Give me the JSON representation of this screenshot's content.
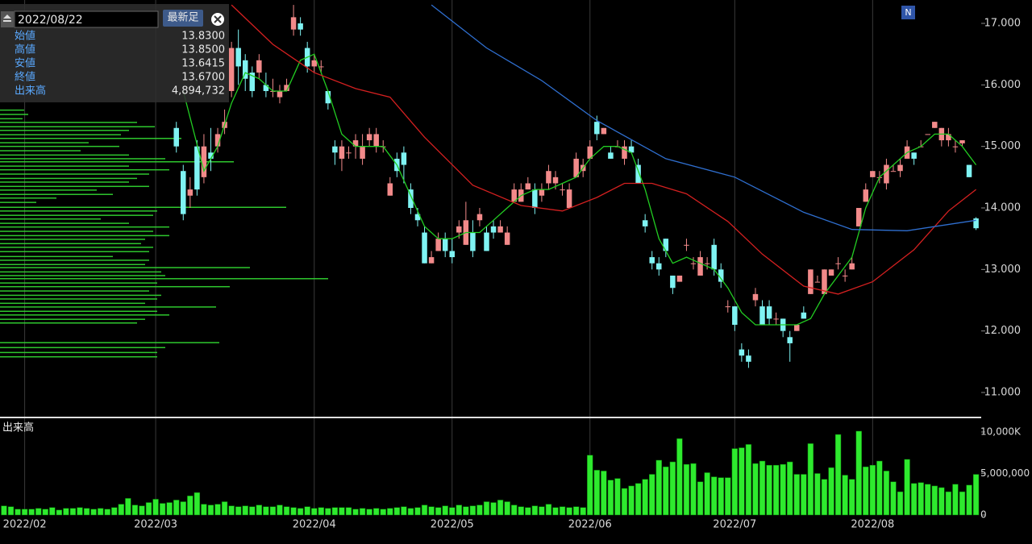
{
  "info_panel": {
    "date": "2022/08/22",
    "button": "最新足",
    "rows": [
      {
        "label": "始値",
        "value": "13.8300"
      },
      {
        "label": "高値",
        "value": "13.8500"
      },
      {
        "label": "安値",
        "value": "13.6415"
      },
      {
        "label": "終値",
        "value": "13.6700"
      },
      {
        "label": "出来高",
        "value": "4,894,732"
      }
    ]
  },
  "badge": "N",
  "chart_data": {
    "type": "candlestick",
    "xlim": [
      -0.58,
      141.75
    ],
    "xticks": [
      {
        "value": 3,
        "label": "2022/02"
      },
      {
        "value": 22,
        "label": "2022/03"
      },
      {
        "value": 45,
        "label": "2022/04"
      },
      {
        "value": 65,
        "label": "2022/05"
      },
      {
        "value": 85,
        "label": "2022/06"
      },
      {
        "value": 106,
        "label": "2022/07"
      },
      {
        "value": 126,
        "label": "2022/08"
      }
    ],
    "ylim": [
      10.594,
      17.38
    ],
    "yticks": [
      {
        "value": 11,
        "label": "11.000"
      },
      {
        "value": 12,
        "label": "12.000"
      },
      {
        "value": 13,
        "label": "13.000"
      },
      {
        "value": 14,
        "label": "14.000"
      },
      {
        "value": 15,
        "label": "15.000"
      },
      {
        "value": 16,
        "label": "16.000"
      },
      {
        "value": 17,
        "label": "17.000"
      }
    ],
    "up_color": "#f28a8a",
    "down_color": "#7ff3f3",
    "ohlc": [
      null,
      null,
      null,
      null,
      null,
      null,
      null,
      null,
      null,
      null,
      null,
      null,
      null,
      null,
      null,
      null,
      null,
      null,
      null,
      null,
      null,
      null,
      null,
      null,
      null,
      [
        15.3,
        15.4,
        14.9,
        15.0
      ],
      [
        14.6,
        14.7,
        13.8,
        13.9
      ],
      [
        14.2,
        14.5,
        14.0,
        14.3
      ],
      [
        15.0,
        15.1,
        14.2,
        14.3
      ],
      [
        14.5,
        15.2,
        14.4,
        15.0
      ],
      [
        14.9,
        15.3,
        14.6,
        14.8
      ],
      [
        15.0,
        15.3,
        14.9,
        15.2
      ],
      [
        15.3,
        15.6,
        15.2,
        15.4
      ],
      [
        15.9,
        16.7,
        15.8,
        16.6
      ],
      [
        16.6,
        16.9,
        16.0,
        16.3
      ],
      [
        16.4,
        16.5,
        15.9,
        16.1
      ],
      [
        16.2,
        16.3,
        15.8,
        15.9
      ],
      [
        16.2,
        16.5,
        16.1,
        16.4
      ],
      [
        16.0,
        16.2,
        15.8,
        15.9
      ],
      [
        15.9,
        16.1,
        15.8,
        15.9
      ],
      [
        15.8,
        16.0,
        15.7,
        15.9
      ],
      [
        15.9,
        16.1,
        15.9,
        16.0
      ],
      [
        16.9,
        17.3,
        16.8,
        17.1
      ],
      [
        17.0,
        17.1,
        16.8,
        16.9
      ],
      [
        16.6,
        16.7,
        16.2,
        16.3
      ],
      [
        16.3,
        16.5,
        16.2,
        16.4
      ],
      [
        16.3,
        16.4,
        16.2,
        16.3
      ],
      [
        15.9,
        15.9,
        15.6,
        15.7
      ],
      [
        15.0,
        15.1,
        14.7,
        14.9
      ],
      [
        14.8,
        15.1,
        14.6,
        15.0
      ],
      [
        14.9,
        15.0,
        14.8,
        14.9
      ],
      [
        15.0,
        15.2,
        14.8,
        15.1
      ],
      [
        14.8,
        15.2,
        14.7,
        15.0
      ],
      [
        15.1,
        15.3,
        15.0,
        15.2
      ],
      [
        15.0,
        15.3,
        14.9,
        15.2
      ],
      [
        15.0,
        15.1,
        14.9,
        15.0
      ],
      [
        14.2,
        14.5,
        14.2,
        14.4
      ],
      [
        14.8,
        14.9,
        14.5,
        14.6
      ],
      [
        14.9,
        15.0,
        14.4,
        14.7
      ],
      [
        14.3,
        14.4,
        13.9,
        14.0
      ],
      [
        13.9,
        14.0,
        13.7,
        13.8
      ],
      [
        13.6,
        13.7,
        13.1,
        13.1
      ],
      [
        13.1,
        13.3,
        13.1,
        13.2
      ],
      [
        13.3,
        13.6,
        13.3,
        13.5
      ],
      [
        13.5,
        13.6,
        13.2,
        13.3
      ],
      [
        13.3,
        13.5,
        13.1,
        13.2
      ],
      [
        13.6,
        13.8,
        13.5,
        13.7
      ],
      [
        13.4,
        14.1,
        13.4,
        13.8
      ],
      [
        13.6,
        13.8,
        13.2,
        13.3
      ],
      [
        13.8,
        14.0,
        13.7,
        13.9
      ],
      [
        13.6,
        13.7,
        13.3,
        13.3
      ],
      [
        13.7,
        13.8,
        13.5,
        13.6
      ],
      [
        13.6,
        13.8,
        13.6,
        13.7
      ],
      [
        13.4,
        13.7,
        13.4,
        13.6
      ],
      [
        14.1,
        14.4,
        14.1,
        14.3
      ],
      [
        14.1,
        14.4,
        14.1,
        14.3
      ],
      [
        14.3,
        14.5,
        14.3,
        14.4
      ],
      [
        14.3,
        14.4,
        13.9,
        14.0
      ],
      [
        14.2,
        14.4,
        14.1,
        14.3
      ],
      [
        14.4,
        14.7,
        14.3,
        14.6
      ],
      [
        14.4,
        14.6,
        14.3,
        14.5
      ],
      [
        14.3,
        14.4,
        14.2,
        14.3
      ],
      [
        14.0,
        14.4,
        14.0,
        14.3
      ],
      [
        14.5,
        14.9,
        14.5,
        14.8
      ],
      [
        14.6,
        14.8,
        14.5,
        14.7
      ],
      [
        14.8,
        15.1,
        14.8,
        15.0
      ],
      [
        15.4,
        15.5,
        15.1,
        15.2
      ],
      [
        15.2,
        15.3,
        15.2,
        15.3
      ],
      [
        14.9,
        15.0,
        14.8,
        14.8
      ],
      [
        15.0,
        15.1,
        15.0,
        15.0
      ],
      [
        14.8,
        15.1,
        14.7,
        15.0
      ],
      [
        15.0,
        15.1,
        14.9,
        14.9
      ],
      [
        14.7,
        14.8,
        14.4,
        14.4
      ],
      [
        13.8,
        13.9,
        13.6,
        13.7
      ],
      [
        13.2,
        13.3,
        13.0,
        13.1
      ],
      [
        13.1,
        13.2,
        12.9,
        13.0
      ],
      [
        13.5,
        13.5,
        13.2,
        13.3
      ],
      [
        12.9,
        12.9,
        12.6,
        12.7
      ],
      [
        12.8,
        12.9,
        12.8,
        12.9
      ],
      [
        13.4,
        13.5,
        13.3,
        13.4
      ],
      [
        13.1,
        13.2,
        13.0,
        13.1
      ],
      [
        12.9,
        13.3,
        12.9,
        13.2
      ],
      [
        13.1,
        13.2,
        13.0,
        13.1
      ],
      [
        13.4,
        13.5,
        12.9,
        13.0
      ],
      [
        13.0,
        13.1,
        12.7,
        12.8
      ],
      [
        12.4,
        12.5,
        12.3,
        12.4
      ],
      [
        12.4,
        12.4,
        12.0,
        12.1
      ],
      [
        11.7,
        11.8,
        11.5,
        11.6
      ],
      [
        11.6,
        11.7,
        11.4,
        11.5
      ],
      [
        12.5,
        12.7,
        12.4,
        12.6
      ],
      [
        12.4,
        12.5,
        12.1,
        12.1
      ],
      [
        12.4,
        12.5,
        12.1,
        12.2
      ],
      [
        12.2,
        12.3,
        12.1,
        12.2
      ],
      [
        12.2,
        12.2,
        11.9,
        12.0
      ],
      [
        11.9,
        12.0,
        11.5,
        11.8
      ],
      [
        12.0,
        12.1,
        12.0,
        12.1
      ],
      [
        12.3,
        12.4,
        12.2,
        12.2
      ],
      [
        12.6,
        13.0,
        12.6,
        13.0
      ],
      [
        12.8,
        12.9,
        12.8,
        12.8
      ],
      [
        12.6,
        13.0,
        12.6,
        13.0
      ],
      [
        12.9,
        13.0,
        12.9,
        13.0
      ],
      [
        13.1,
        13.2,
        13.0,
        13.1
      ],
      [
        12.9,
        13.0,
        12.8,
        12.9
      ],
      [
        13.0,
        13.2,
        13.0,
        13.1
      ],
      [
        13.7,
        14.0,
        13.7,
        14.0
      ],
      [
        14.1,
        14.4,
        14.1,
        14.3
      ],
      [
        14.5,
        14.6,
        14.5,
        14.6
      ],
      [
        14.5,
        14.6,
        14.4,
        14.5
      ],
      [
        14.4,
        14.8,
        14.3,
        14.7
      ],
      [
        14.6,
        14.7,
        14.6,
        14.6
      ],
      [
        14.6,
        14.8,
        14.5,
        14.7
      ],
      [
        14.8,
        15.1,
        14.8,
        15.0
      ],
      [
        14.9,
        14.9,
        14.7,
        14.8
      ],
      [
        15.0,
        15.1,
        15.0,
        15.0
      ],
      [
        15.2,
        15.2,
        15.2,
        15.2
      ],
      [
        15.3,
        15.4,
        15.3,
        15.4
      ],
      [
        15.1,
        15.3,
        15.0,
        15.3
      ],
      [
        15.1,
        15.3,
        15.0,
        15.2
      ],
      [
        15.0,
        15.1,
        14.9,
        15.0
      ],
      [
        15.05,
        15.1,
        15.0,
        15.1
      ],
      [
        14.7,
        14.7,
        14.5,
        14.5
      ],
      [
        13.83,
        13.85,
        13.6415,
        13.67
      ]
    ],
    "moving_averages": [
      {
        "color": "#22cc22",
        "x": [
          26,
          29,
          31,
          33,
          35,
          37,
          39,
          41,
          43,
          45,
          47,
          49,
          51,
          53,
          55,
          57,
          59,
          61,
          63,
          65,
          67,
          69,
          71,
          73,
          75,
          77,
          79,
          81,
          83,
          85,
          87,
          89,
          91,
          93,
          95,
          97,
          99,
          101,
          103,
          105,
          107,
          109,
          111,
          113,
          115,
          117,
          119,
          121,
          123,
          125,
          127,
          129,
          131,
          133,
          135,
          137,
          139,
          141
        ],
        "values": [
          15.9,
          14.6,
          15.0,
          15.7,
          16.2,
          16.1,
          15.9,
          15.9,
          16.4,
          16.5,
          15.9,
          15.2,
          15.0,
          15.0,
          15.0,
          14.7,
          14.2,
          13.7,
          13.5,
          13.5,
          13.6,
          13.6,
          13.8,
          14.0,
          14.2,
          14.3,
          14.3,
          14.4,
          14.5,
          14.8,
          15.0,
          15.0,
          14.9,
          14.3,
          13.5,
          13.1,
          13.2,
          13.1,
          13.0,
          12.7,
          12.3,
          12.1,
          12.1,
          12.1,
          12.1,
          12.2,
          12.6,
          12.9,
          13.2,
          14.0,
          14.5,
          14.7,
          14.9,
          15.0,
          15.2,
          15.2,
          15.0,
          14.7
        ]
      },
      {
        "color": "#d42020",
        "x": [
          33,
          39,
          45,
          51,
          56,
          61,
          68,
          75,
          81,
          86,
          90,
          94,
          99,
          105,
          110,
          116,
          121,
          126,
          132,
          137,
          141
        ],
        "values": [
          17.3,
          16.66,
          16.2,
          15.94,
          15.8,
          15.15,
          14.37,
          14.04,
          13.95,
          14.17,
          14.4,
          14.4,
          14.23,
          13.78,
          13.25,
          12.73,
          12.6,
          12.8,
          13.32,
          13.95,
          14.3
        ]
      },
      {
        "color": "#2f6fd0",
        "x": [
          62,
          70,
          78,
          86,
          96,
          106,
          116,
          123,
          131,
          141
        ],
        "values": [
          17.3,
          16.6,
          16.07,
          15.42,
          14.8,
          14.5,
          13.93,
          13.65,
          13.63,
          13.8
        ]
      }
    ],
    "volume": {
      "label": "出来高",
      "color": "#2eea2e",
      "ylim": [
        0,
        11360000
      ],
      "yticks": [
        {
          "value": 0,
          "label": "0"
        },
        {
          "value": 5000000,
          "label": "5,000,000"
        },
        {
          "value": 10000000,
          "label": "10,000K"
        }
      ],
      "values": [
        1100000,
        1000000,
        700000,
        700000,
        700000,
        800000,
        700000,
        900000,
        600000,
        800000,
        800000,
        900000,
        800000,
        700000,
        800000,
        700000,
        900000,
        1300000,
        2000000,
        1200000,
        1100000,
        1500000,
        1900000,
        1400000,
        1500000,
        1800000,
        1600000,
        2300000,
        2700000,
        1300000,
        1200000,
        1300000,
        1600000,
        1100000,
        1000000,
        1100000,
        1000000,
        1200000,
        1000000,
        1000000,
        1200000,
        1000000,
        900000,
        800000,
        1000000,
        800000,
        900000,
        800000,
        900000,
        900000,
        900000,
        700000,
        800000,
        700000,
        800000,
        700000,
        800000,
        900000,
        1000000,
        800000,
        900000,
        1200000,
        1000000,
        900000,
        1100000,
        900000,
        1200000,
        1000000,
        1100000,
        1200000,
        1600000,
        1500000,
        1800000,
        1600000,
        1200000,
        1000000,
        900000,
        1100000,
        1000000,
        1300000,
        900000,
        1000000,
        900000,
        1000000,
        900000,
        7200000,
        5400000,
        5300000,
        4200000,
        4400000,
        3200000,
        3500000,
        3800000,
        4300000,
        4900000,
        6600000,
        5800000,
        6400000,
        9200000,
        6100000,
        6200000,
        4000000,
        5100000,
        4600000,
        4500000,
        4500000,
        8000000,
        8100000,
        8500000,
        6200000,
        6500000,
        6000000,
        6000000,
        6100000,
        6400000,
        4900000,
        4900000,
        8600000,
        5000000,
        4300000,
        5700000,
        9700000,
        4800000,
        4300000,
        10100000,
        5800000,
        6000000,
        6500000,
        5300000,
        4000000,
        2800000,
        6700000,
        3800000,
        3900000,
        3700000,
        3500000,
        3300000,
        2800000,
        3700000,
        2800000,
        3600000,
        4894732
      ]
    },
    "volume_profile": {
      "color": "#33dd33",
      "prices": [
        15.59,
        15.52,
        15.45,
        15.39,
        15.32,
        15.26,
        15.19,
        15.13,
        15.06,
        15.0,
        14.93,
        14.86,
        14.8,
        14.75,
        14.68,
        14.62,
        14.55,
        14.48,
        14.42,
        14.35,
        14.29,
        14.22,
        14.16,
        14.09,
        14.01,
        13.95,
        13.88,
        13.82,
        13.75,
        13.69,
        13.62,
        13.55,
        13.49,
        13.42,
        13.36,
        13.29,
        13.21,
        13.15,
        13.08,
        13.03,
        12.96,
        12.9,
        12.85,
        12.78,
        12.72,
        12.65,
        12.58,
        12.52,
        12.45,
        12.39,
        12.32,
        12.26,
        12.19,
        12.13,
        11.81,
        11.73,
        11.65,
        11.58
      ],
      "values": [
        30,
        35,
        28,
        170,
        192,
        160,
        150,
        225,
        110,
        148,
        100,
        160,
        205,
        290,
        160,
        210,
        185,
        170,
        160,
        185,
        120,
        140,
        70,
        45,
        355,
        195,
        190,
        125,
        160,
        210,
        190,
        210,
        180,
        175,
        190,
        185,
        140,
        185,
        180,
        310,
        200,
        205,
        407,
        195,
        285,
        185,
        200,
        195,
        180,
        268,
        195,
        210,
        180,
        170,
        272,
        205,
        195,
        195
      ]
    }
  }
}
